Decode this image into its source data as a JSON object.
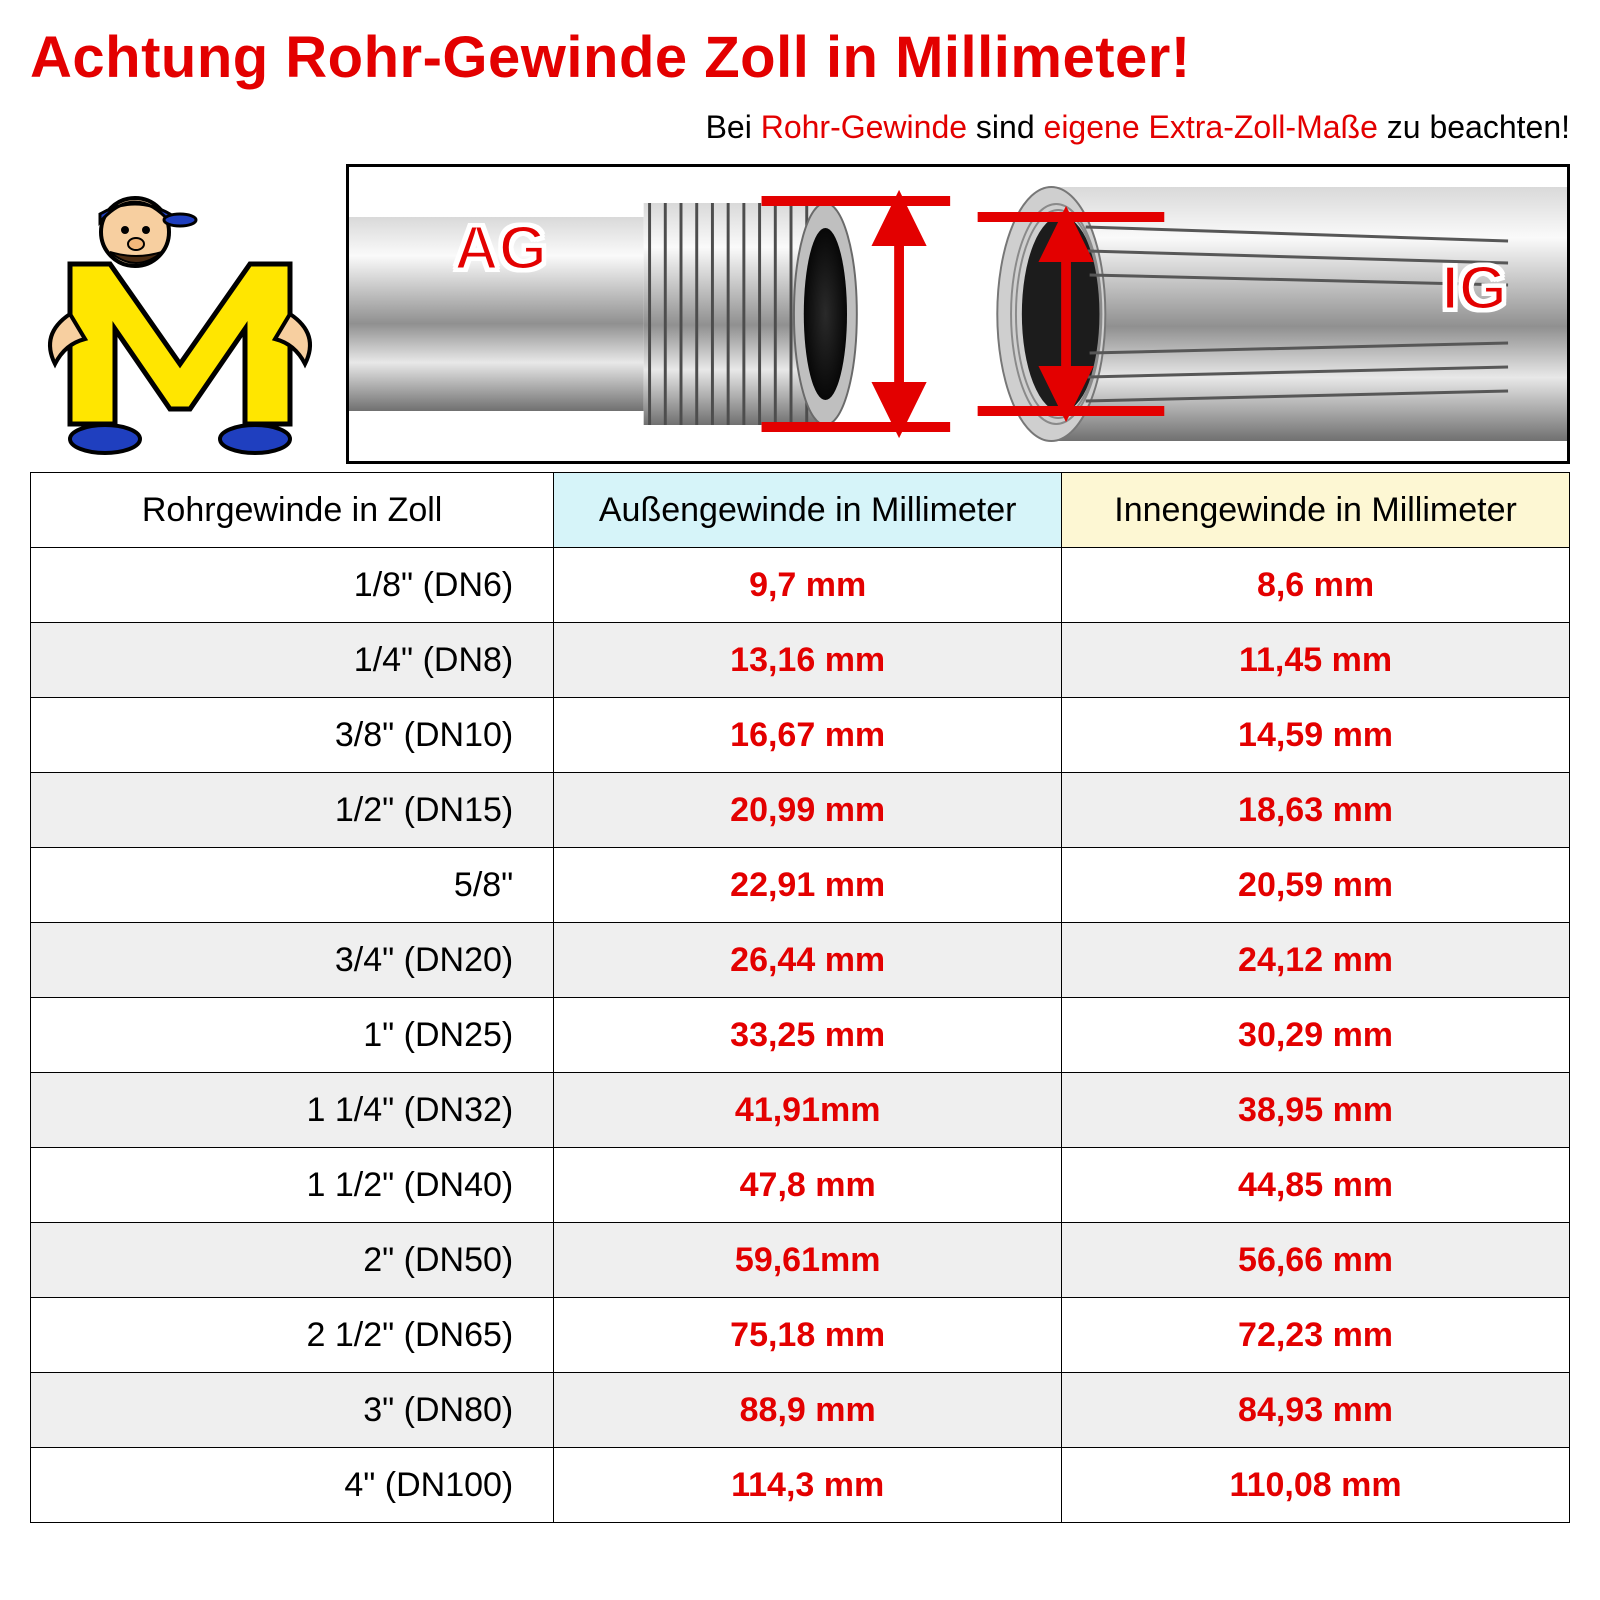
{
  "colors": {
    "headline_red": "#e30000",
    "value_red": "#e30000",
    "header_ag_bg": "#d6f4f9",
    "header_ig_bg": "#fdf7d3",
    "row_shade": "#efefef",
    "border": "#000000"
  },
  "headline": "Achtung Rohr-Gewinde Zoll in Millimeter!",
  "subline_pre": "Bei ",
  "subline_h1": "Rohr-Gewinde",
  "subline_mid": " sind ",
  "subline_h2": "eigene Extra-Zoll-Maße",
  "subline_post": " zu beachten!",
  "diagram": {
    "ag_label": "AG",
    "ig_label": "IG"
  },
  "table": {
    "col_zoll": "Rohrgewinde in Zoll",
    "col_ag": "Außengewinde in Millimeter",
    "col_ig": "Innengewinde in Millimeter",
    "rows": [
      {
        "zoll": "1/8\"  (DN6)",
        "ag": "9,7 mm",
        "ig": "8,6 mm",
        "shade": false
      },
      {
        "zoll": "1/4\"  (DN8)",
        "ag": "13,16 mm",
        "ig": "11,45 mm",
        "shade": true
      },
      {
        "zoll": "3/8\"  (DN10)",
        "ag": "16,67 mm",
        "ig": "14,59 mm",
        "shade": false
      },
      {
        "zoll": "1/2\"  (DN15)",
        "ag": "20,99 mm",
        "ig": "18,63 mm",
        "shade": true
      },
      {
        "zoll": "5/8\"",
        "ag": "22,91 mm",
        "ig": "20,59 mm",
        "shade": false
      },
      {
        "zoll": "3/4\"  (DN20)",
        "ag": "26,44 mm",
        "ig": "24,12 mm",
        "shade": true
      },
      {
        "zoll": "1\"  (DN25)",
        "ag": "33,25 mm",
        "ig": "30,29 mm",
        "shade": false
      },
      {
        "zoll": "1 1/4\"  (DN32)",
        "ag": "41,91mm",
        "ig": "38,95 mm",
        "shade": true
      },
      {
        "zoll": "1 1/2\"  (DN40)",
        "ag": "47,8 mm",
        "ig": "44,85 mm",
        "shade": false
      },
      {
        "zoll": "2\" (DN50)",
        "ag": "59,61mm",
        "ig": "56,66 mm",
        "shade": true
      },
      {
        "zoll": "2 1/2\"  (DN65)",
        "ag": "75,18 mm",
        "ig": "72,23 mm",
        "shade": false
      },
      {
        "zoll": "3\"  (DN80)",
        "ag": "88,9 mm",
        "ig": "84,93 mm",
        "shade": true
      },
      {
        "zoll": "4\"  (DN100)",
        "ag": "114,3 mm",
        "ig": "110,08 mm",
        "shade": false
      }
    ]
  }
}
